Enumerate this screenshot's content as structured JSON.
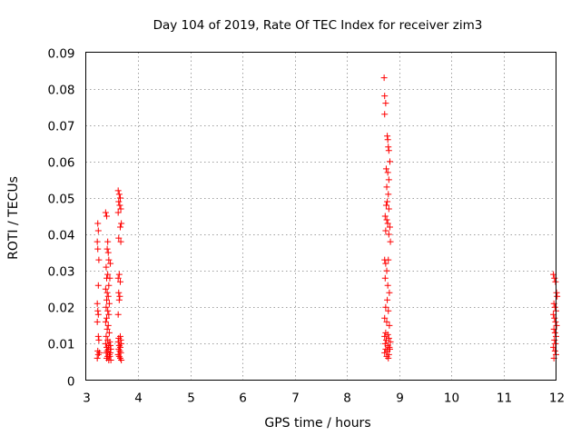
{
  "chart_data": {
    "type": "scatter",
    "title": "Day 104 of 2019, Rate Of TEC Index for receiver zim3",
    "xlabel": "GPS time / hours",
    "ylabel": "ROTI / TECUs",
    "xlim": [
      3,
      12
    ],
    "ylim": [
      0,
      0.09
    ],
    "xticks": [
      3,
      4,
      5,
      6,
      7,
      8,
      9,
      10,
      11,
      12
    ],
    "yticks": [
      0,
      0.01,
      0.02,
      0.03,
      0.04,
      0.05,
      0.06,
      0.07,
      0.08,
      0.09
    ],
    "xtick_labels": [
      "3",
      "4",
      "5",
      "6",
      "7",
      "8",
      "9",
      "10",
      "11",
      "12"
    ],
    "ytick_labels": [
      "0",
      "0.01",
      "0.02",
      "0.03",
      "0.04",
      "0.05",
      "0.06",
      "0.07",
      "0.08",
      "0.09"
    ],
    "grid": true,
    "marker": "+",
    "series": [
      {
        "name": "ROTI",
        "color": "#ff0000",
        "points": [
          [
            3.23,
            0.043
          ],
          [
            3.24,
            0.041
          ],
          [
            3.22,
            0.038
          ],
          [
            3.23,
            0.036
          ],
          [
            3.25,
            0.033
          ],
          [
            3.24,
            0.026
          ],
          [
            3.22,
            0.021
          ],
          [
            3.23,
            0.019
          ],
          [
            3.24,
            0.018
          ],
          [
            3.22,
            0.016
          ],
          [
            3.24,
            0.012
          ],
          [
            3.25,
            0.011
          ],
          [
            3.23,
            0.008
          ],
          [
            3.24,
            0.007
          ],
          [
            3.22,
            0.006
          ],
          [
            3.26,
            0.0075
          ],
          [
            3.38,
            0.046
          ],
          [
            3.4,
            0.045
          ],
          [
            3.42,
            0.038
          ],
          [
            3.41,
            0.036
          ],
          [
            3.43,
            0.035
          ],
          [
            3.44,
            0.033
          ],
          [
            3.39,
            0.031
          ],
          [
            3.42,
            0.029
          ],
          [
            3.4,
            0.028
          ],
          [
            3.44,
            0.026
          ],
          [
            3.38,
            0.025
          ],
          [
            3.41,
            0.024
          ],
          [
            3.43,
            0.023
          ],
          [
            3.4,
            0.022
          ],
          [
            3.45,
            0.021
          ],
          [
            3.39,
            0.02
          ],
          [
            3.42,
            0.019
          ],
          [
            3.44,
            0.018
          ],
          [
            3.4,
            0.017
          ],
          [
            3.38,
            0.016
          ],
          [
            3.43,
            0.015
          ],
          [
            3.41,
            0.014
          ],
          [
            3.45,
            0.013
          ],
          [
            3.39,
            0.012
          ],
          [
            3.42,
            0.011
          ],
          [
            3.38,
            0.01
          ],
          [
            3.44,
            0.0095
          ],
          [
            3.4,
            0.009
          ],
          [
            3.43,
            0.0085
          ],
          [
            3.41,
            0.008
          ],
          [
            3.39,
            0.0075
          ],
          [
            3.45,
            0.007
          ],
          [
            3.42,
            0.0065
          ],
          [
            3.4,
            0.006
          ],
          [
            3.44,
            0.0055
          ],
          [
            3.46,
            0.0105
          ],
          [
            3.47,
            0.0095
          ],
          [
            3.48,
            0.0085
          ],
          [
            3.47,
            0.0075
          ],
          [
            3.46,
            0.0065
          ],
          [
            3.48,
            0.0055
          ],
          [
            3.47,
            0.032
          ],
          [
            3.46,
            0.028
          ],
          [
            3.62,
            0.052
          ],
          [
            3.64,
            0.051
          ],
          [
            3.66,
            0.05
          ],
          [
            3.63,
            0.049
          ],
          [
            3.65,
            0.048
          ],
          [
            3.67,
            0.047
          ],
          [
            3.62,
            0.046
          ],
          [
            3.68,
            0.043
          ],
          [
            3.66,
            0.042
          ],
          [
            3.63,
            0.039
          ],
          [
            3.67,
            0.038
          ],
          [
            3.64,
            0.029
          ],
          [
            3.62,
            0.028
          ],
          [
            3.66,
            0.027
          ],
          [
            3.63,
            0.024
          ],
          [
            3.65,
            0.023
          ],
          [
            3.64,
            0.022
          ],
          [
            3.62,
            0.018
          ],
          [
            3.66,
            0.012
          ],
          [
            3.63,
            0.0115
          ],
          [
            3.67,
            0.011
          ],
          [
            3.62,
            0.0105
          ],
          [
            3.68,
            0.01
          ],
          [
            3.64,
            0.0095
          ],
          [
            3.66,
            0.009
          ],
          [
            3.63,
            0.0085
          ],
          [
            3.65,
            0.008
          ],
          [
            3.67,
            0.0075
          ],
          [
            3.62,
            0.007
          ],
          [
            3.64,
            0.0065
          ],
          [
            3.66,
            0.006
          ],
          [
            3.68,
            0.0055
          ],
          [
            8.71,
            0.083
          ],
          [
            8.72,
            0.078
          ],
          [
            8.74,
            0.076
          ],
          [
            8.72,
            0.073
          ],
          [
            8.77,
            0.067
          ],
          [
            8.78,
            0.066
          ],
          [
            8.79,
            0.064
          ],
          [
            8.8,
            0.063
          ],
          [
            8.82,
            0.06
          ],
          [
            8.75,
            0.058
          ],
          [
            8.78,
            0.057
          ],
          [
            8.8,
            0.055
          ],
          [
            8.76,
            0.053
          ],
          [
            8.79,
            0.051
          ],
          [
            8.77,
            0.049
          ],
          [
            8.75,
            0.048
          ],
          [
            8.8,
            0.047
          ],
          [
            8.73,
            0.045
          ],
          [
            8.76,
            0.044
          ],
          [
            8.78,
            0.043
          ],
          [
            8.82,
            0.042
          ],
          [
            8.74,
            0.041
          ],
          [
            8.8,
            0.04
          ],
          [
            8.83,
            0.038
          ],
          [
            8.72,
            0.033
          ],
          [
            8.74,
            0.032
          ],
          [
            8.79,
            0.033
          ],
          [
            8.76,
            0.03
          ],
          [
            8.73,
            0.028
          ],
          [
            8.78,
            0.026
          ],
          [
            8.81,
            0.024
          ],
          [
            8.77,
            0.022
          ],
          [
            8.74,
            0.02
          ],
          [
            8.79,
            0.019
          ],
          [
            8.72,
            0.017
          ],
          [
            8.76,
            0.016
          ],
          [
            8.81,
            0.015
          ],
          [
            8.74,
            0.013
          ],
          [
            8.78,
            0.0125
          ],
          [
            8.72,
            0.012
          ],
          [
            8.8,
            0.0115
          ],
          [
            8.75,
            0.011
          ],
          [
            8.83,
            0.0105
          ],
          [
            8.73,
            0.01
          ],
          [
            8.78,
            0.0095
          ],
          [
            8.81,
            0.009
          ],
          [
            8.74,
            0.0085
          ],
          [
            8.77,
            0.008
          ],
          [
            8.72,
            0.0075
          ],
          [
            8.8,
            0.007
          ],
          [
            8.76,
            0.0065
          ],
          [
            8.79,
            0.006
          ],
          [
            8.82,
            0.0085
          ],
          [
            11.95,
            0.029
          ],
          [
            11.97,
            0.028
          ],
          [
            11.99,
            0.027
          ],
          [
            12.01,
            0.024
          ],
          [
            12.02,
            0.023
          ],
          [
            11.96,
            0.021
          ],
          [
            11.98,
            0.02
          ],
          [
            12.0,
            0.019
          ],
          [
            11.95,
            0.018
          ],
          [
            11.97,
            0.017
          ],
          [
            11.99,
            0.016
          ],
          [
            12.01,
            0.015
          ],
          [
            11.96,
            0.014
          ],
          [
            11.98,
            0.013
          ],
          [
            12.0,
            0.012
          ],
          [
            11.97,
            0.011
          ],
          [
            11.99,
            0.01
          ],
          [
            11.95,
            0.009
          ],
          [
            11.98,
            0.008
          ],
          [
            12.0,
            0.007
          ],
          [
            11.96,
            0.006
          ]
        ]
      }
    ]
  }
}
